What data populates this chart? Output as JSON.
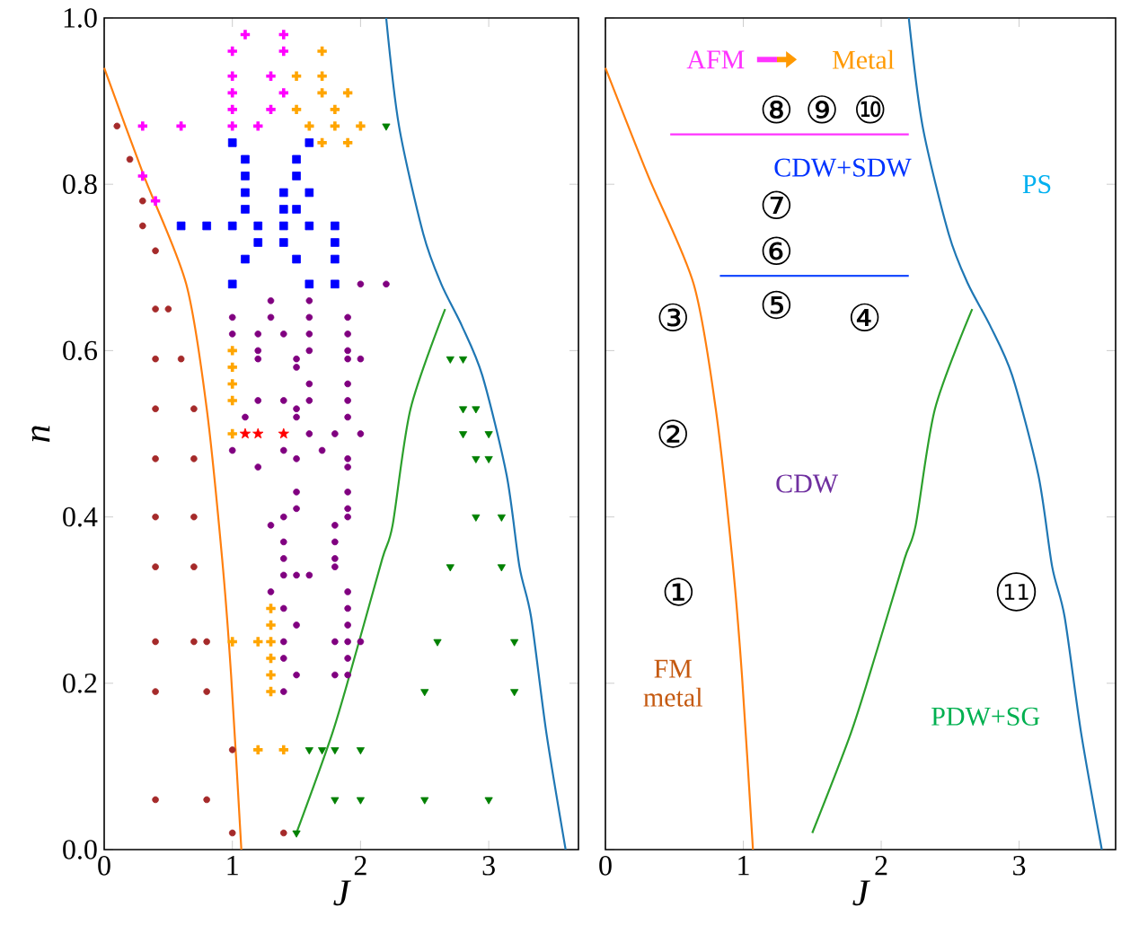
{
  "chart_data": [
    {
      "type": "scatter",
      "xlabel": "J",
      "ylabel": "n",
      "xlim": [
        0,
        3.7
      ],
      "ylim": [
        0,
        1
      ],
      "xticks": [
        0,
        1,
        2,
        3
      ],
      "yticks": [
        {
          "value": 0,
          "label": "0.0"
        },
        {
          "value": 0.2,
          "label": "0.2"
        },
        {
          "value": 0.4,
          "label": "0.4"
        },
        {
          "value": 0.6,
          "label": "0.6"
        },
        {
          "value": 0.8,
          "label": "0.8"
        },
        {
          "value": 1.0,
          "label": "1.0"
        }
      ],
      "series": [
        {
          "color": "#a52a2a",
          "marker": "circle",
          "x": [
            0.1,
            0.2,
            0.3,
            0.3,
            0.4,
            0.4,
            0.5,
            0.4,
            0.6,
            0.4,
            0.7,
            0.4,
            0.7,
            0.4,
            0.7,
            0.4,
            0.7,
            0.4,
            0.7,
            0.8,
            0.4,
            0.8,
            1.0,
            0.4,
            0.8,
            1.0,
            1.4
          ],
          "values": [
            0.87,
            0.83,
            0.78,
            0.75,
            0.72,
            0.65,
            0.65,
            0.59,
            0.59,
            0.53,
            0.53,
            0.47,
            0.47,
            0.4,
            0.4,
            0.34,
            0.34,
            0.25,
            0.25,
            0.25,
            0.19,
            0.19,
            0.12,
            0.06,
            0.06,
            0.02,
            0.02
          ]
        },
        {
          "color": "#ff00ff",
          "marker": "cross",
          "x": [
            1.1,
            1.4,
            1.0,
            1.4,
            1.0,
            1.3,
            1.0,
            1.4,
            1.0,
            1.3,
            0.3,
            0.6,
            1.0,
            1.2,
            0.3,
            0.4
          ],
          "values": [
            0.98,
            0.98,
            0.96,
            0.96,
            0.93,
            0.93,
            0.91,
            0.91,
            0.89,
            0.89,
            0.87,
            0.87,
            0.87,
            0.87,
            0.81,
            0.78
          ]
        },
        {
          "color": "#ffa500",
          "marker": "cross",
          "x": [
            1.7,
            1.5,
            1.7,
            1.7,
            1.9,
            1.5,
            1.8,
            1.6,
            1.8,
            2.0,
            1.7,
            1.9,
            1.0,
            1.0,
            1.0,
            1.0,
            1.0,
            1.3,
            1.3,
            1.0,
            1.2,
            1.3,
            1.3,
            1.3,
            1.3,
            1.2,
            1.4
          ],
          "values": [
            0.96,
            0.93,
            0.93,
            0.91,
            0.91,
            0.89,
            0.89,
            0.87,
            0.87,
            0.87,
            0.85,
            0.85,
            0.6,
            0.58,
            0.56,
            0.54,
            0.5,
            0.29,
            0.27,
            0.25,
            0.25,
            0.25,
            0.23,
            0.21,
            0.19,
            0.12,
            0.12
          ]
        },
        {
          "color": "#0000ff",
          "marker": "square",
          "x": [
            1.0,
            1.6,
            1.1,
            1.5,
            1.1,
            1.5,
            1.1,
            1.4,
            1.6,
            1.1,
            1.4,
            1.5,
            0.6,
            0.8,
            1.0,
            1.2,
            1.4,
            1.6,
            1.8,
            1.2,
            1.4,
            1.8,
            1.1,
            1.5,
            1.8,
            1.0,
            1.6,
            1.8
          ],
          "values": [
            0.85,
            0.85,
            0.83,
            0.83,
            0.81,
            0.81,
            0.79,
            0.79,
            0.79,
            0.77,
            0.77,
            0.77,
            0.75,
            0.75,
            0.75,
            0.75,
            0.75,
            0.75,
            0.75,
            0.73,
            0.73,
            0.73,
            0.71,
            0.71,
            0.71,
            0.68,
            0.68,
            0.68
          ]
        },
        {
          "color": "#800080",
          "marker": "circle",
          "x": [
            2.0,
            2.2,
            1.3,
            1.6,
            1.0,
            1.3,
            1.6,
            1.9,
            1.0,
            1.2,
            1.4,
            1.6,
            1.9,
            1.2,
            1.6,
            1.9,
            1.2,
            1.5,
            1.9,
            2.0,
            1.5,
            1.6,
            1.9,
            1.2,
            1.4,
            1.6,
            1.9,
            1.5,
            1.1,
            1.5,
            1.9,
            1.6,
            1.8,
            2.0,
            1.0,
            1.4,
            1.7,
            1.5,
            1.9,
            1.2,
            1.9,
            1.5,
            1.9,
            1.5,
            1.9,
            1.4,
            1.9,
            1.3,
            1.8,
            1.4,
            1.8,
            1.4,
            1.8,
            1.8,
            1.4,
            1.5,
            1.6,
            1.3,
            1.9,
            1.4,
            1.9,
            1.5,
            1.9,
            1.4,
            1.8,
            1.9,
            2.0,
            1.4,
            1.9,
            1.5,
            1.8,
            1.9,
            1.4
          ],
          "values": [
            0.68,
            0.68,
            0.66,
            0.66,
            0.64,
            0.64,
            0.64,
            0.64,
            0.62,
            0.62,
            0.62,
            0.62,
            0.62,
            0.6,
            0.6,
            0.6,
            0.59,
            0.59,
            0.59,
            0.59,
            0.58,
            0.56,
            0.56,
            0.54,
            0.54,
            0.54,
            0.54,
            0.53,
            0.52,
            0.52,
            0.52,
            0.5,
            0.5,
            0.5,
            0.48,
            0.48,
            0.48,
            0.47,
            0.47,
            0.46,
            0.46,
            0.43,
            0.43,
            0.41,
            0.41,
            0.4,
            0.4,
            0.39,
            0.39,
            0.37,
            0.37,
            0.35,
            0.35,
            0.34,
            0.33,
            0.33,
            0.33,
            0.31,
            0.31,
            0.29,
            0.29,
            0.27,
            0.27,
            0.25,
            0.25,
            0.25,
            0.25,
            0.23,
            0.23,
            0.21,
            0.21,
            0.21,
            0.19
          ]
        },
        {
          "color": "#ff0000",
          "marker": "star",
          "x": [
            1.1,
            1.2,
            1.4
          ],
          "values": [
            0.5,
            0.5,
            0.5
          ]
        },
        {
          "color": "#008000",
          "marker": "triangle",
          "x": [
            2.2,
            2.7,
            2.8,
            2.8,
            2.9,
            2.8,
            3.0,
            2.9,
            3.0,
            2.9,
            3.1,
            2.7,
            3.1,
            2.6,
            3.2,
            2.5,
            3.2,
            1.6,
            1.7,
            1.8,
            2.0,
            1.8,
            2.0,
            2.5,
            3.0,
            1.5
          ],
          "values": [
            0.87,
            0.59,
            0.59,
            0.53,
            0.53,
            0.5,
            0.5,
            0.47,
            0.47,
            0.4,
            0.4,
            0.34,
            0.34,
            0.25,
            0.25,
            0.19,
            0.19,
            0.12,
            0.12,
            0.12,
            0.12,
            0.06,
            0.06,
            0.06,
            0.06,
            0.02
          ]
        },
        {
          "type": "line",
          "color": "#ff7f0e",
          "x": [
            0,
            0.31,
            0.64,
            0.8,
            0.92,
            0.99,
            1.07
          ],
          "values": [
            0.94,
            0.81,
            0.68,
            0.53,
            0.35,
            0.21,
            0
          ]
        },
        {
          "type": "line",
          "color": "#1f77b4",
          "x": [
            2.2,
            2.3,
            2.49,
            2.63,
            2.79,
            2.95,
            3.14,
            3.24,
            3.33,
            3.45,
            3.6
          ],
          "values": [
            1.0,
            0.87,
            0.74,
            0.68,
            0.63,
            0.57,
            0.45,
            0.34,
            0.28,
            0.14,
            0
          ]
        },
        {
          "type": "line",
          "color": "#2ca02c",
          "x": [
            1.5,
            1.78,
            1.97,
            2.17,
            2.25,
            2.39,
            2.66
          ],
          "values": [
            0.02,
            0.14,
            0.24,
            0.35,
            0.39,
            0.53,
            0.65
          ]
        }
      ]
    },
    {
      "type": "line",
      "xlabel": "J",
      "xlim": [
        0,
        3.7
      ],
      "ylim": [
        0,
        1
      ],
      "xticks": [
        0,
        1,
        2,
        3
      ],
      "yticks": [
        0,
        0.2,
        0.4,
        0.6,
        0.8,
        1.0
      ],
      "tick_labels": "x",
      "series": [
        {
          "color": "#ff7f0e",
          "x": [
            0,
            0.31,
            0.64,
            0.8,
            0.92,
            0.99,
            1.07
          ],
          "values": [
            0.94,
            0.81,
            0.68,
            0.53,
            0.35,
            0.21,
            0
          ]
        },
        {
          "color": "#1f77b4",
          "x": [
            2.2,
            2.3,
            2.49,
            2.63,
            2.79,
            2.95,
            3.14,
            3.24,
            3.33,
            3.45,
            3.6
          ],
          "values": [
            1.0,
            0.87,
            0.74,
            0.68,
            0.63,
            0.57,
            0.45,
            0.34,
            0.28,
            0.14,
            0
          ]
        },
        {
          "color": "#2ca02c",
          "x": [
            1.5,
            1.78,
            1.97,
            2.17,
            2.25,
            2.39,
            2.66
          ],
          "values": [
            0.02,
            0.14,
            0.24,
            0.35,
            0.39,
            0.53,
            0.65
          ]
        },
        {
          "color": "#ff33ff",
          "x": [
            0.47,
            2.2
          ],
          "values": [
            0.86,
            0.86
          ]
        },
        {
          "color": "#1a4cff",
          "x": [
            0.83,
            2.2
          ],
          "values": [
            0.69,
            0.69
          ]
        }
      ],
      "annotations": [
        "AFM",
        "Metal",
        "CDW+SDW",
        "PS",
        "CDW",
        "FM metal",
        "PDW+SG",
        "①",
        "②",
        "③",
        "④",
        "⑤",
        "⑥",
        "⑦",
        "⑧",
        "⑨",
        "⑩",
        "11"
      ]
    }
  ]
}
